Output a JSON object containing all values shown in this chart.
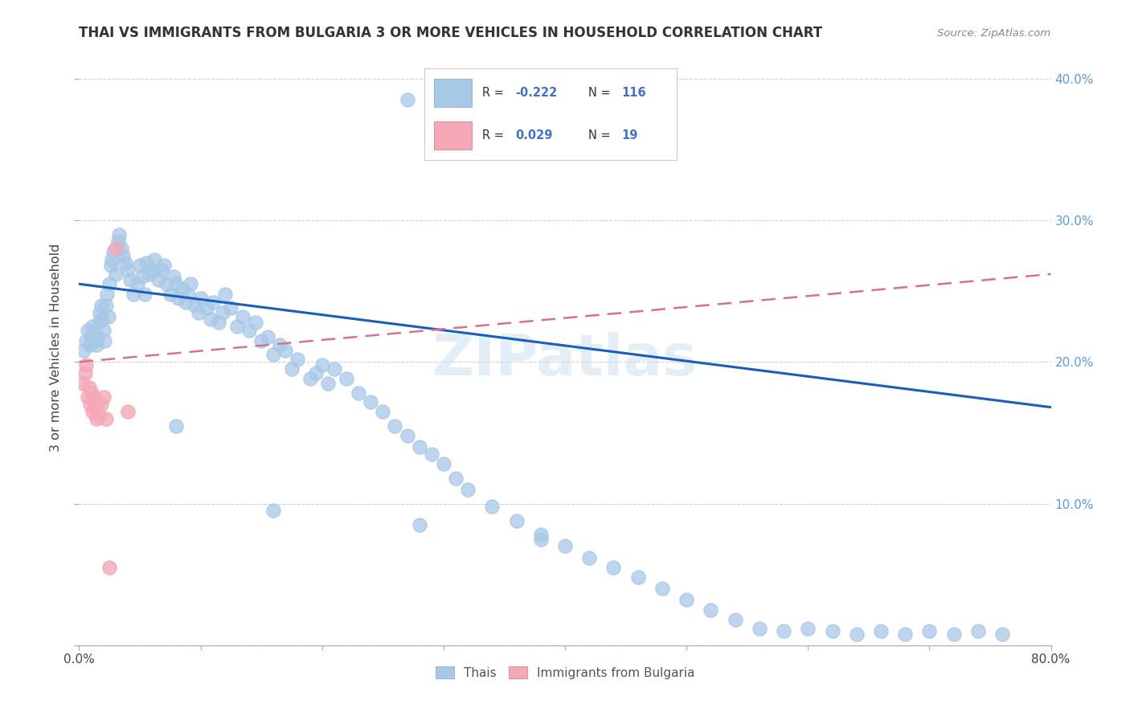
{
  "title": "THAI VS IMMIGRANTS FROM BULGARIA 3 OR MORE VEHICLES IN HOUSEHOLD CORRELATION CHART",
  "source_text": "Source: ZipAtlas.com",
  "ylabel": "3 or more Vehicles in Household",
  "xlim": [
    0.0,
    0.8
  ],
  "ylim": [
    0.0,
    0.42
  ],
  "xtick_positions": [
    0.0,
    0.1,
    0.2,
    0.3,
    0.4,
    0.5,
    0.6,
    0.7,
    0.8
  ],
  "xticklabels": [
    "0.0%",
    "",
    "",
    "",
    "",
    "",
    "",
    "",
    "80.0%"
  ],
  "yticks": [
    0.0,
    0.1,
    0.2,
    0.3,
    0.4
  ],
  "yticklabels_right": [
    "",
    "10.0%",
    "20.0%",
    "30.0%",
    "40.0%"
  ],
  "watermark": "ZIPatlas",
  "blue_color": "#a8c8e8",
  "pink_color": "#f4a8b8",
  "blue_line_color": "#1a5eb8",
  "pink_line_color": "#d87090",
  "background_color": "#ffffff",
  "grid_color": "#d0d0d0",
  "thai_trendline": [
    0.0,
    0.255,
    0.8,
    0.168
  ],
  "bulg_trendline": [
    0.0,
    0.2,
    0.8,
    0.262
  ],
  "thai_x": [
    0.004,
    0.006,
    0.007,
    0.009,
    0.01,
    0.011,
    0.012,
    0.013,
    0.014,
    0.015,
    0.016,
    0.017,
    0.018,
    0.019,
    0.02,
    0.021,
    0.022,
    0.023,
    0.024,
    0.025,
    0.026,
    0.027,
    0.028,
    0.03,
    0.032,
    0.033,
    0.035,
    0.036,
    0.038,
    0.04,
    0.042,
    0.045,
    0.048,
    0.05,
    0.052,
    0.054,
    0.055,
    0.058,
    0.06,
    0.062,
    0.065,
    0.068,
    0.07,
    0.072,
    0.075,
    0.078,
    0.08,
    0.082,
    0.085,
    0.088,
    0.09,
    0.092,
    0.095,
    0.098,
    0.1,
    0.105,
    0.108,
    0.11,
    0.115,
    0.118,
    0.12,
    0.125,
    0.13,
    0.135,
    0.14,
    0.145,
    0.15,
    0.155,
    0.16,
    0.165,
    0.17,
    0.175,
    0.18,
    0.19,
    0.195,
    0.2,
    0.205,
    0.21,
    0.22,
    0.23,
    0.24,
    0.25,
    0.26,
    0.27,
    0.28,
    0.29,
    0.3,
    0.31,
    0.32,
    0.34,
    0.36,
    0.38,
    0.4,
    0.42,
    0.44,
    0.46,
    0.48,
    0.5,
    0.52,
    0.54,
    0.56,
    0.58,
    0.6,
    0.62,
    0.64,
    0.66,
    0.68,
    0.7,
    0.72,
    0.74,
    0.76,
    0.27,
    0.43,
    0.08,
    0.16,
    0.28,
    0.38
  ],
  "thai_y": [
    0.208,
    0.215,
    0.222,
    0.212,
    0.218,
    0.225,
    0.22,
    0.215,
    0.212,
    0.218,
    0.228,
    0.235,
    0.24,
    0.23,
    0.222,
    0.215,
    0.24,
    0.248,
    0.232,
    0.255,
    0.268,
    0.272,
    0.278,
    0.262,
    0.285,
    0.29,
    0.28,
    0.275,
    0.27,
    0.265,
    0.258,
    0.248,
    0.255,
    0.268,
    0.26,
    0.248,
    0.27,
    0.262,
    0.265,
    0.272,
    0.258,
    0.265,
    0.268,
    0.255,
    0.248,
    0.26,
    0.255,
    0.245,
    0.252,
    0.242,
    0.248,
    0.255,
    0.24,
    0.235,
    0.245,
    0.238,
    0.23,
    0.242,
    0.228,
    0.235,
    0.248,
    0.238,
    0.225,
    0.232,
    0.222,
    0.228,
    0.215,
    0.218,
    0.205,
    0.212,
    0.208,
    0.195,
    0.202,
    0.188,
    0.192,
    0.198,
    0.185,
    0.195,
    0.188,
    0.178,
    0.172,
    0.165,
    0.155,
    0.148,
    0.14,
    0.135,
    0.128,
    0.118,
    0.11,
    0.098,
    0.088,
    0.078,
    0.07,
    0.062,
    0.055,
    0.048,
    0.04,
    0.032,
    0.025,
    0.018,
    0.012,
    0.01,
    0.012,
    0.01,
    0.008,
    0.01,
    0.008,
    0.01,
    0.008,
    0.01,
    0.008,
    0.385,
    0.375,
    0.155,
    0.095,
    0.085,
    0.075
  ],
  "bulg_x": [
    0.003,
    0.005,
    0.006,
    0.007,
    0.008,
    0.009,
    0.01,
    0.011,
    0.012,
    0.013,
    0.014,
    0.015,
    0.016,
    0.018,
    0.02,
    0.022,
    0.025,
    0.03,
    0.04
  ],
  "bulg_y": [
    0.185,
    0.192,
    0.198,
    0.175,
    0.182,
    0.17,
    0.178,
    0.165,
    0.175,
    0.168,
    0.16,
    0.172,
    0.162,
    0.17,
    0.175,
    0.16,
    0.055,
    0.28,
    0.165
  ]
}
